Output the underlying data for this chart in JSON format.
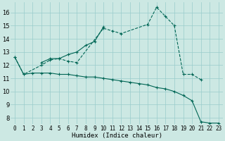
{
  "x": [
    0,
    1,
    2,
    3,
    4,
    5,
    6,
    7,
    8,
    9,
    10,
    11,
    12,
    13,
    14,
    15,
    16,
    17,
    18,
    19,
    20,
    21,
    22,
    23
  ],
  "curve1_x": [
    0,
    1,
    3,
    4,
    5,
    6,
    7,
    10,
    11,
    12,
    15,
    16,
    17,
    18,
    19,
    20,
    21
  ],
  "curve1_y": [
    12.6,
    11.3,
    12.0,
    12.4,
    12.5,
    12.3,
    12.2,
    14.8,
    14.6,
    14.4,
    15.1,
    16.4,
    15.7,
    15.0,
    11.3,
    11.3,
    10.9
  ],
  "curve2_x": [
    3,
    4,
    5,
    6,
    7,
    8,
    9,
    10
  ],
  "curve2_y": [
    12.2,
    12.5,
    12.5,
    12.8,
    13.0,
    13.5,
    13.8,
    14.9
  ],
  "curve3_x": [
    0,
    1,
    2,
    3,
    4,
    5,
    6,
    7,
    8,
    9,
    10,
    11,
    12,
    13,
    14,
    15,
    16,
    17,
    18,
    19,
    20,
    21,
    22,
    23
  ],
  "curve3_y": [
    12.6,
    11.3,
    11.4,
    11.4,
    11.4,
    11.3,
    11.3,
    11.2,
    11.1,
    11.1,
    11.0,
    10.9,
    10.8,
    10.7,
    10.6,
    10.5,
    10.3,
    10.2,
    10.0,
    9.7,
    9.3,
    7.7,
    7.6,
    7.6
  ],
  "bg_color": "#cce8e3",
  "grid_color": "#99cccc",
  "line_color": "#006655",
  "xlabel": "Humidex (Indice chaleur)",
  "ylim": [
    7.5,
    16.8
  ],
  "xlim": [
    -0.5,
    23.5
  ],
  "yticks": [
    8,
    9,
    10,
    11,
    12,
    13,
    14,
    15,
    16
  ],
  "xticks": [
    0,
    1,
    2,
    3,
    4,
    5,
    6,
    7,
    8,
    9,
    10,
    11,
    12,
    13,
    14,
    15,
    16,
    17,
    18,
    19,
    20,
    21,
    22,
    23
  ],
  "xlabel_fontsize": 6.5,
  "tick_fontsize": 5.5,
  "ytick_fontsize": 6.0
}
